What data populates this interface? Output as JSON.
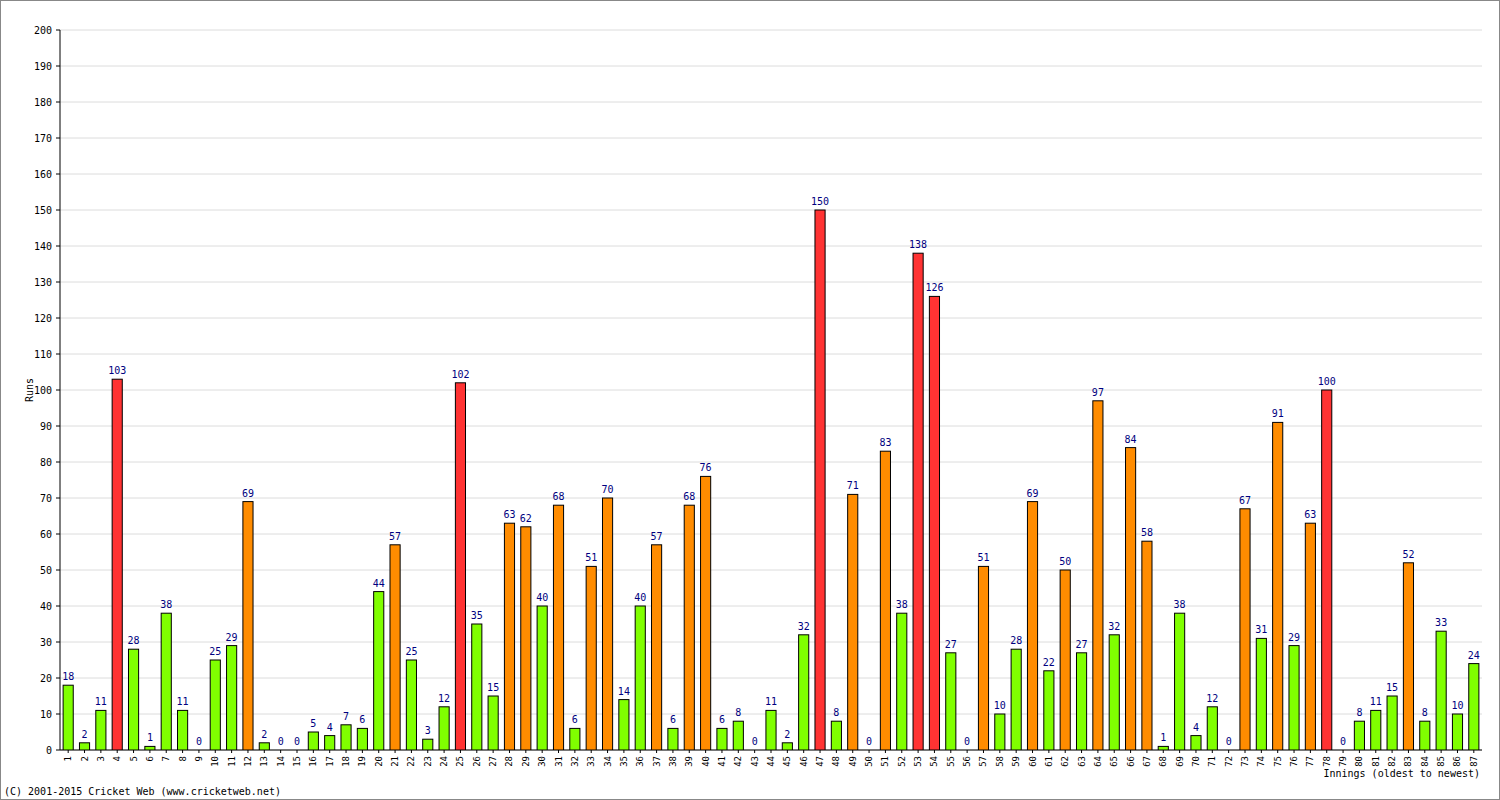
{
  "chart_data": {
    "type": "bar",
    "y_label": "Runs",
    "x_label": "Innings (oldest to newest)",
    "footer": "(C) 2001-2015 Cricket Web (www.cricketweb.net)",
    "categories": [
      "1",
      "2",
      "3",
      "4",
      "5",
      "6",
      "7",
      "8",
      "9",
      "10",
      "11",
      "12",
      "13",
      "14",
      "15",
      "16",
      "17",
      "18",
      "19",
      "20",
      "21",
      "22",
      "23",
      "24",
      "25",
      "26",
      "27",
      "28",
      "29",
      "30",
      "31",
      "32",
      "33",
      "34",
      "35",
      "36",
      "37",
      "38",
      "39",
      "40",
      "41",
      "42",
      "43",
      "44",
      "45",
      "46",
      "47",
      "48",
      "49",
      "50",
      "51",
      "52",
      "53",
      "54",
      "55",
      "56",
      "57",
      "58",
      "59",
      "60",
      "61",
      "62",
      "63",
      "64",
      "65",
      "66",
      "67",
      "68",
      "69",
      "70",
      "71",
      "72",
      "73",
      "74",
      "75",
      "76",
      "77",
      "78",
      "79",
      "80",
      "81",
      "82",
      "83",
      "84",
      "85",
      "86",
      "87"
    ],
    "values": [
      18,
      2,
      11,
      103,
      28,
      1,
      38,
      11,
      0,
      25,
      29,
      69,
      2,
      0,
      0,
      5,
      4,
      7,
      6,
      44,
      57,
      25,
      3,
      12,
      102,
      35,
      15,
      63,
      62,
      40,
      68,
      6,
      51,
      70,
      14,
      40,
      57,
      6,
      68,
      76,
      6,
      8,
      0,
      11,
      2,
      32,
      150,
      8,
      71,
      0,
      83,
      38,
      138,
      126,
      27,
      0,
      51,
      10,
      28,
      69,
      22,
      50,
      27,
      97,
      32,
      84,
      58,
      1,
      38,
      4,
      12,
      0,
      67,
      31,
      91,
      29,
      63,
      100,
      0,
      8,
      11,
      15,
      52,
      8,
      33,
      10,
      24
    ],
    "colors": [
      "#80ff00",
      "#80ff00",
      "#80ff00",
      "#ff3333",
      "#80ff00",
      "#80ff00",
      "#80ff00",
      "#80ff00",
      "#80ff00",
      "#80ff00",
      "#80ff00",
      "#ff8c00",
      "#80ff00",
      "#80ff00",
      "#80ff00",
      "#80ff00",
      "#80ff00",
      "#80ff00",
      "#80ff00",
      "#80ff00",
      "#ff8c00",
      "#80ff00",
      "#80ff00",
      "#80ff00",
      "#ff3333",
      "#80ff00",
      "#80ff00",
      "#ff8c00",
      "#ff8c00",
      "#80ff00",
      "#ff8c00",
      "#80ff00",
      "#ff8c00",
      "#ff8c00",
      "#80ff00",
      "#80ff00",
      "#ff8c00",
      "#80ff00",
      "#ff8c00",
      "#ff8c00",
      "#80ff00",
      "#80ff00",
      "#80ff00",
      "#80ff00",
      "#80ff00",
      "#80ff00",
      "#ff3333",
      "#80ff00",
      "#ff8c00",
      "#80ff00",
      "#ff8c00",
      "#80ff00",
      "#ff3333",
      "#ff3333",
      "#80ff00",
      "#80ff00",
      "#ff8c00",
      "#80ff00",
      "#80ff00",
      "#ff8c00",
      "#80ff00",
      "#ff8c00",
      "#80ff00",
      "#ff8c00",
      "#80ff00",
      "#ff8c00",
      "#ff8c00",
      "#80ff00",
      "#80ff00",
      "#80ff00",
      "#80ff00",
      "#80ff00",
      "#ff8c00",
      "#80ff00",
      "#ff8c00",
      "#80ff00",
      "#ff8c00",
      "#ff3333",
      "#80ff00",
      "#80ff00",
      "#80ff00",
      "#80ff00",
      "#ff8c00",
      "#80ff00",
      "#80ff00",
      "#80ff00",
      "#80ff00"
    ],
    "ylim": [
      0,
      200
    ],
    "yticks": [
      0,
      10,
      20,
      30,
      40,
      50,
      60,
      70,
      80,
      90,
      100,
      110,
      120,
      130,
      140,
      150,
      160,
      170,
      180,
      190,
      200
    ],
    "grid": true,
    "data_labels": true
  }
}
